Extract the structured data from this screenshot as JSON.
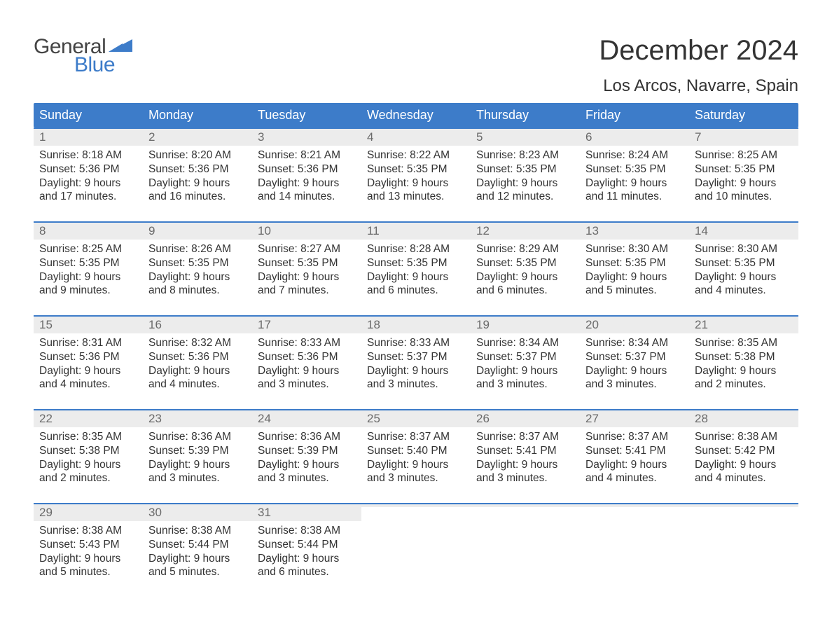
{
  "brand": {
    "part1": "General",
    "part2": "Blue",
    "text_color": "#444444",
    "accent_color": "#3d7cc9"
  },
  "title": "December 2024",
  "location": "Los Arcos, Navarre, Spain",
  "colors": {
    "header_bg": "#3d7cc9",
    "header_text": "#ffffff",
    "daynum_bg": "#ececec",
    "daynum_text": "#6a6a6a",
    "body_text": "#333333",
    "week_border": "#3d7cc9",
    "page_bg": "#ffffff"
  },
  "typography": {
    "title_fontsize": 40,
    "location_fontsize": 24,
    "weekday_fontsize": 18,
    "daynum_fontsize": 17,
    "body_fontsize": 15.5,
    "logo_fontsize": 30
  },
  "weekdays": [
    "Sunday",
    "Monday",
    "Tuesday",
    "Wednesday",
    "Thursday",
    "Friday",
    "Saturday"
  ],
  "weeks": [
    [
      {
        "n": "1",
        "sr": "Sunrise: 8:18 AM",
        "ss": "Sunset: 5:36 PM",
        "d1": "Daylight: 9 hours",
        "d2": "and 17 minutes."
      },
      {
        "n": "2",
        "sr": "Sunrise: 8:20 AM",
        "ss": "Sunset: 5:36 PM",
        "d1": "Daylight: 9 hours",
        "d2": "and 16 minutes."
      },
      {
        "n": "3",
        "sr": "Sunrise: 8:21 AM",
        "ss": "Sunset: 5:36 PM",
        "d1": "Daylight: 9 hours",
        "d2": "and 14 minutes."
      },
      {
        "n": "4",
        "sr": "Sunrise: 8:22 AM",
        "ss": "Sunset: 5:35 PM",
        "d1": "Daylight: 9 hours",
        "d2": "and 13 minutes."
      },
      {
        "n": "5",
        "sr": "Sunrise: 8:23 AM",
        "ss": "Sunset: 5:35 PM",
        "d1": "Daylight: 9 hours",
        "d2": "and 12 minutes."
      },
      {
        "n": "6",
        "sr": "Sunrise: 8:24 AM",
        "ss": "Sunset: 5:35 PM",
        "d1": "Daylight: 9 hours",
        "d2": "and 11 minutes."
      },
      {
        "n": "7",
        "sr": "Sunrise: 8:25 AM",
        "ss": "Sunset: 5:35 PM",
        "d1": "Daylight: 9 hours",
        "d2": "and 10 minutes."
      }
    ],
    [
      {
        "n": "8",
        "sr": "Sunrise: 8:25 AM",
        "ss": "Sunset: 5:35 PM",
        "d1": "Daylight: 9 hours",
        "d2": "and 9 minutes."
      },
      {
        "n": "9",
        "sr": "Sunrise: 8:26 AM",
        "ss": "Sunset: 5:35 PM",
        "d1": "Daylight: 9 hours",
        "d2": "and 8 minutes."
      },
      {
        "n": "10",
        "sr": "Sunrise: 8:27 AM",
        "ss": "Sunset: 5:35 PM",
        "d1": "Daylight: 9 hours",
        "d2": "and 7 minutes."
      },
      {
        "n": "11",
        "sr": "Sunrise: 8:28 AM",
        "ss": "Sunset: 5:35 PM",
        "d1": "Daylight: 9 hours",
        "d2": "and 6 minutes."
      },
      {
        "n": "12",
        "sr": "Sunrise: 8:29 AM",
        "ss": "Sunset: 5:35 PM",
        "d1": "Daylight: 9 hours",
        "d2": "and 6 minutes."
      },
      {
        "n": "13",
        "sr": "Sunrise: 8:30 AM",
        "ss": "Sunset: 5:35 PM",
        "d1": "Daylight: 9 hours",
        "d2": "and 5 minutes."
      },
      {
        "n": "14",
        "sr": "Sunrise: 8:30 AM",
        "ss": "Sunset: 5:35 PM",
        "d1": "Daylight: 9 hours",
        "d2": "and 4 minutes."
      }
    ],
    [
      {
        "n": "15",
        "sr": "Sunrise: 8:31 AM",
        "ss": "Sunset: 5:36 PM",
        "d1": "Daylight: 9 hours",
        "d2": "and 4 minutes."
      },
      {
        "n": "16",
        "sr": "Sunrise: 8:32 AM",
        "ss": "Sunset: 5:36 PM",
        "d1": "Daylight: 9 hours",
        "d2": "and 4 minutes."
      },
      {
        "n": "17",
        "sr": "Sunrise: 8:33 AM",
        "ss": "Sunset: 5:36 PM",
        "d1": "Daylight: 9 hours",
        "d2": "and 3 minutes."
      },
      {
        "n": "18",
        "sr": "Sunrise: 8:33 AM",
        "ss": "Sunset: 5:37 PM",
        "d1": "Daylight: 9 hours",
        "d2": "and 3 minutes."
      },
      {
        "n": "19",
        "sr": "Sunrise: 8:34 AM",
        "ss": "Sunset: 5:37 PM",
        "d1": "Daylight: 9 hours",
        "d2": "and 3 minutes."
      },
      {
        "n": "20",
        "sr": "Sunrise: 8:34 AM",
        "ss": "Sunset: 5:37 PM",
        "d1": "Daylight: 9 hours",
        "d2": "and 3 minutes."
      },
      {
        "n": "21",
        "sr": "Sunrise: 8:35 AM",
        "ss": "Sunset: 5:38 PM",
        "d1": "Daylight: 9 hours",
        "d2": "and 2 minutes."
      }
    ],
    [
      {
        "n": "22",
        "sr": "Sunrise: 8:35 AM",
        "ss": "Sunset: 5:38 PM",
        "d1": "Daylight: 9 hours",
        "d2": "and 2 minutes."
      },
      {
        "n": "23",
        "sr": "Sunrise: 8:36 AM",
        "ss": "Sunset: 5:39 PM",
        "d1": "Daylight: 9 hours",
        "d2": "and 3 minutes."
      },
      {
        "n": "24",
        "sr": "Sunrise: 8:36 AM",
        "ss": "Sunset: 5:39 PM",
        "d1": "Daylight: 9 hours",
        "d2": "and 3 minutes."
      },
      {
        "n": "25",
        "sr": "Sunrise: 8:37 AM",
        "ss": "Sunset: 5:40 PM",
        "d1": "Daylight: 9 hours",
        "d2": "and 3 minutes."
      },
      {
        "n": "26",
        "sr": "Sunrise: 8:37 AM",
        "ss": "Sunset: 5:41 PM",
        "d1": "Daylight: 9 hours",
        "d2": "and 3 minutes."
      },
      {
        "n": "27",
        "sr": "Sunrise: 8:37 AM",
        "ss": "Sunset: 5:41 PM",
        "d1": "Daylight: 9 hours",
        "d2": "and 4 minutes."
      },
      {
        "n": "28",
        "sr": "Sunrise: 8:38 AM",
        "ss": "Sunset: 5:42 PM",
        "d1": "Daylight: 9 hours",
        "d2": "and 4 minutes."
      }
    ],
    [
      {
        "n": "29",
        "sr": "Sunrise: 8:38 AM",
        "ss": "Sunset: 5:43 PM",
        "d1": "Daylight: 9 hours",
        "d2": "and 5 minutes."
      },
      {
        "n": "30",
        "sr": "Sunrise: 8:38 AM",
        "ss": "Sunset: 5:44 PM",
        "d1": "Daylight: 9 hours",
        "d2": "and 5 minutes."
      },
      {
        "n": "31",
        "sr": "Sunrise: 8:38 AM",
        "ss": "Sunset: 5:44 PM",
        "d1": "Daylight: 9 hours",
        "d2": "and 6 minutes."
      },
      {
        "empty": true
      },
      {
        "empty": true
      },
      {
        "empty": true
      },
      {
        "empty": true
      }
    ]
  ]
}
